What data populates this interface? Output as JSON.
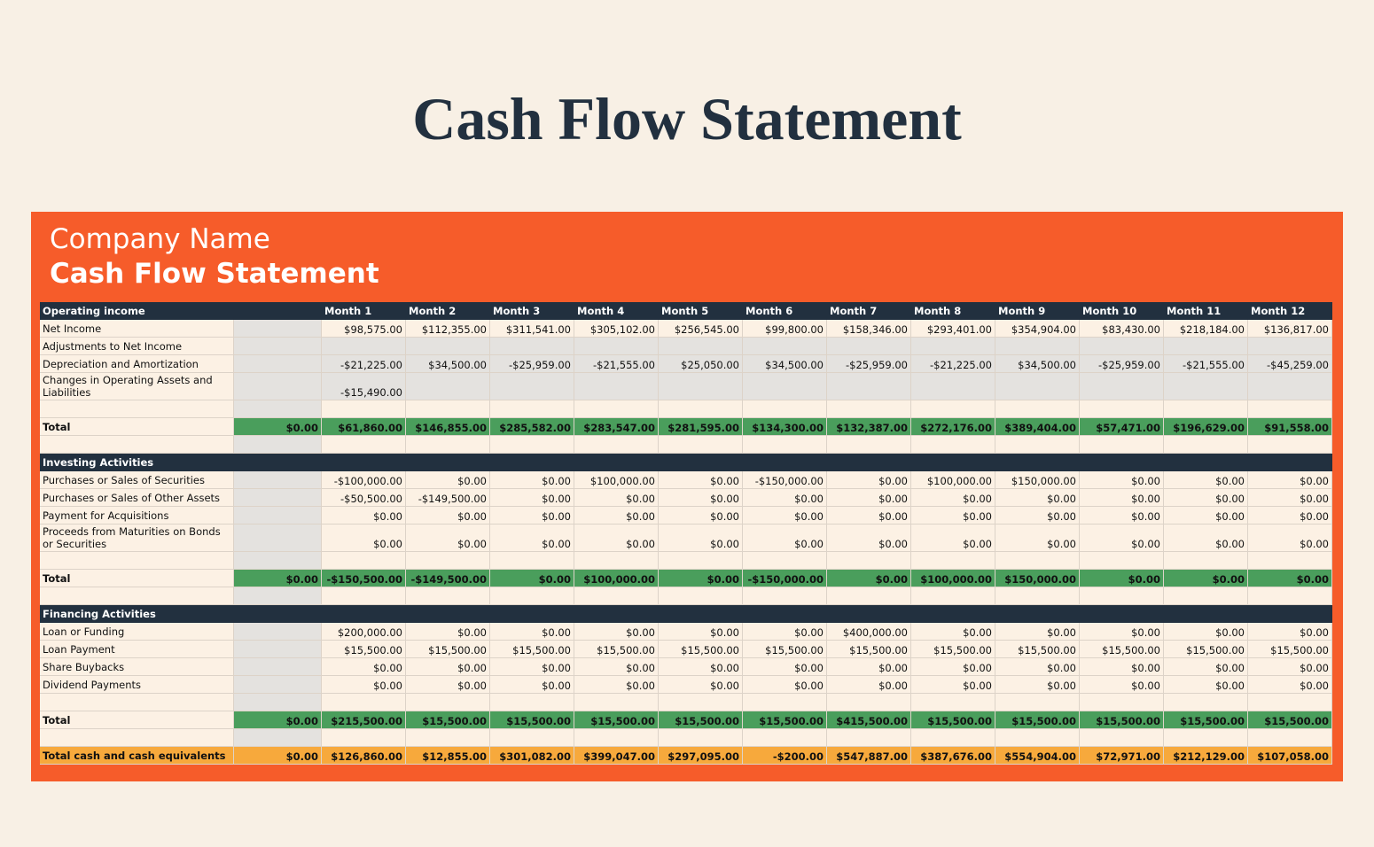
{
  "page_title": "Cash Flow Statement",
  "company": "Company Name",
  "subtitle": "Cash Flow Statement",
  "columns": [
    "Month 1",
    "Month 2",
    "Month 3",
    "Month 4",
    "Month 5",
    "Month 6",
    "Month 7",
    "Month 8",
    "Month 9",
    "Month 10",
    "Month 11",
    "Month 12"
  ],
  "sections": [
    {
      "title": "Operating income",
      "rows": [
        {
          "label": "Net Income",
          "cells": [
            "$98,575.00",
            "$112,355.00",
            "$311,541.00",
            "$305,102.00",
            "$256,545.00",
            "$99,800.00",
            "$158,346.00",
            "$293,401.00",
            "$354,904.00",
            "$83,430.00",
            "$218,184.00",
            "$136,817.00"
          ]
        },
        {
          "label": "Adjustments to Net Income",
          "cells": []
        },
        {
          "label": "Depreciation and Amortization",
          "cells": [
            "-$21,225.00",
            "$34,500.00",
            "-$25,959.00",
            "-$21,555.00",
            "$25,050.00",
            "$34,500.00",
            "-$25,959.00",
            "-$21,225.00",
            "$34,500.00",
            "-$25,959.00",
            "-$21,555.00",
            "-$45,259.00"
          ]
        },
        {
          "label": "Changes in Operating Assets and Liabilities",
          "cells": [
            "-$15,490.00"
          ]
        }
      ],
      "total": {
        "label": "Total",
        "start": "$0.00",
        "cells": [
          "$61,860.00",
          "$146,855.00",
          "$285,582.00",
          "$283,547.00",
          "$281,595.00",
          "$134,300.00",
          "$132,387.00",
          "$272,176.00",
          "$389,404.00",
          "$57,471.00",
          "$196,629.00",
          "$91,558.00"
        ]
      }
    },
    {
      "title": "Investing Activities",
      "rows": [
        {
          "label": "Purchases or Sales of Securities",
          "cells": [
            "-$100,000.00",
            "$0.00",
            "$0.00",
            "$100,000.00",
            "$0.00",
            "-$150,000.00",
            "$0.00",
            "$100,000.00",
            "$150,000.00",
            "$0.00",
            "$0.00",
            "$0.00"
          ]
        },
        {
          "label": "Purchases or Sales of Other Assets",
          "cells": [
            "-$50,500.00",
            "-$149,500.00",
            "$0.00",
            "$0.00",
            "$0.00",
            "$0.00",
            "$0.00",
            "$0.00",
            "$0.00",
            "$0.00",
            "$0.00",
            "$0.00"
          ]
        },
        {
          "label": "Payment for Acquisitions",
          "cells": [
            "$0.00",
            "$0.00",
            "$0.00",
            "$0.00",
            "$0.00",
            "$0.00",
            "$0.00",
            "$0.00",
            "$0.00",
            "$0.00",
            "$0.00",
            "$0.00"
          ]
        },
        {
          "label": "Proceeds from Maturities on Bonds or Securities",
          "cells": [
            "$0.00",
            "$0.00",
            "$0.00",
            "$0.00",
            "$0.00",
            "$0.00",
            "$0.00",
            "$0.00",
            "$0.00",
            "$0.00",
            "$0.00",
            "$0.00"
          ]
        }
      ],
      "total": {
        "label": "Total",
        "start": "$0.00",
        "cells": [
          "-$150,500.00",
          "-$149,500.00",
          "$0.00",
          "$100,000.00",
          "$0.00",
          "-$150,000.00",
          "$0.00",
          "$100,000.00",
          "$150,000.00",
          "$0.00",
          "$0.00",
          "$0.00"
        ]
      }
    },
    {
      "title": "Financing Activities",
      "rows": [
        {
          "label": "Loan or Funding",
          "cells": [
            "$200,000.00",
            "$0.00",
            "$0.00",
            "$0.00",
            "$0.00",
            "$0.00",
            "$400,000.00",
            "$0.00",
            "$0.00",
            "$0.00",
            "$0.00",
            "$0.00"
          ]
        },
        {
          "label": "Loan Payment",
          "cells": [
            "$15,500.00",
            "$15,500.00",
            "$15,500.00",
            "$15,500.00",
            "$15,500.00",
            "$15,500.00",
            "$15,500.00",
            "$15,500.00",
            "$15,500.00",
            "$15,500.00",
            "$15,500.00",
            "$15,500.00"
          ]
        },
        {
          "label": "Share Buybacks",
          "cells": [
            "$0.00",
            "$0.00",
            "$0.00",
            "$0.00",
            "$0.00",
            "$0.00",
            "$0.00",
            "$0.00",
            "$0.00",
            "$0.00",
            "$0.00",
            "$0.00"
          ]
        },
        {
          "label": "Dividend Payments",
          "cells": [
            "$0.00",
            "$0.00",
            "$0.00",
            "$0.00",
            "$0.00",
            "$0.00",
            "$0.00",
            "$0.00",
            "$0.00",
            "$0.00",
            "$0.00",
            "$0.00"
          ]
        }
      ],
      "total": {
        "label": "Total",
        "start": "$0.00",
        "cells": [
          "$215,500.00",
          "$15,500.00",
          "$15,500.00",
          "$15,500.00",
          "$15,500.00",
          "$15,500.00",
          "$415,500.00",
          "$15,500.00",
          "$15,500.00",
          "$15,500.00",
          "$15,500.00",
          "$15,500.00"
        ]
      }
    }
  ],
  "grand_total": {
    "label": "Total cash and cash equivalents",
    "start": "$0.00",
    "cells": [
      "$126,860.00",
      "$12,855.00",
      "$301,082.00",
      "$399,047.00",
      "$297,095.00",
      "-$200.00",
      "$547,887.00",
      "$387,676.00",
      "$554,904.00",
      "$72,971.00",
      "$212,129.00",
      "$107,058.00"
    ]
  }
}
